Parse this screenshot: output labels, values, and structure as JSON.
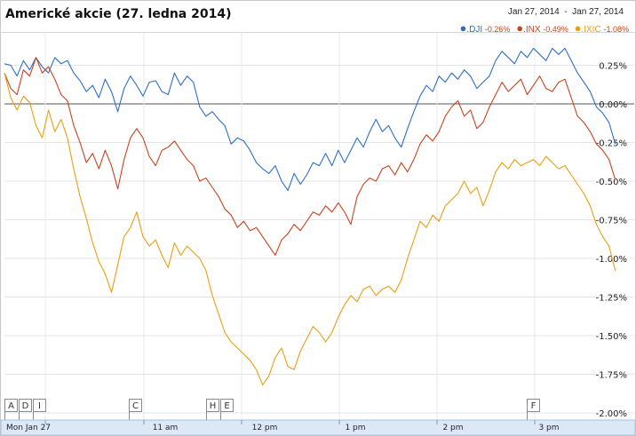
{
  "chart_data": {
    "type": "line",
    "title": "Americké akcie (27. ledna 2014)",
    "date_range": "Jan 27, 2014  -  Jan 27, 2014",
    "x_ticks": [
      "Mon Jan 27",
      "11 am",
      "12 pm",
      "1 pm",
      "2 pm",
      "3 pm"
    ],
    "y_ticks": [
      "0.25%",
      "0.00%",
      "-0.25%",
      "-0.50%",
      "-0.75%",
      "-1.00%",
      "-1.25%",
      "-1.50%",
      "-1.75%",
      "-2.00%"
    ],
    "ylim": [
      -2.0,
      0.35
    ],
    "xlim": [
      0,
      100
    ],
    "grid": true,
    "legend_position": "top-right",
    "flags": [
      "A",
      "D",
      "I",
      "C",
      "H",
      "E",
      "F"
    ],
    "series": [
      {
        "name": ".DJI",
        "change": "-0.26%",
        "color": "#2e6fc4",
        "points": [
          [
            0,
            0.26
          ],
          [
            1,
            0.25
          ],
          [
            2,
            0.18
          ],
          [
            3,
            0.28
          ],
          [
            4,
            0.22
          ],
          [
            5,
            0.3
          ],
          [
            6,
            0.24
          ],
          [
            7,
            0.2
          ],
          [
            8,
            0.3
          ],
          [
            9,
            0.26
          ],
          [
            10,
            0.28
          ],
          [
            11,
            0.2
          ],
          [
            12,
            0.15
          ],
          [
            13,
            0.08
          ],
          [
            14,
            0.12
          ],
          [
            15,
            0.04
          ],
          [
            16,
            0.16
          ],
          [
            17,
            0.08
          ],
          [
            18,
            -0.05
          ],
          [
            19,
            0.1
          ],
          [
            20,
            0.18
          ],
          [
            21,
            0.12
          ],
          [
            22,
            0.05
          ],
          [
            23,
            0.14
          ],
          [
            24,
            0.15
          ],
          [
            25,
            0.08
          ],
          [
            26,
            0.06
          ],
          [
            27,
            0.2
          ],
          [
            28,
            0.12
          ],
          [
            29,
            0.18
          ],
          [
            30,
            0.14
          ],
          [
            31,
            -0.02
          ],
          [
            32,
            -0.08
          ],
          [
            33,
            -0.05
          ],
          [
            34,
            -0.1
          ],
          [
            35,
            -0.14
          ],
          [
            36,
            -0.26
          ],
          [
            37,
            -0.22
          ],
          [
            38,
            -0.24
          ],
          [
            39,
            -0.3
          ],
          [
            40,
            -0.38
          ],
          [
            41,
            -0.42
          ],
          [
            42,
            -0.45
          ],
          [
            43,
            -0.4
          ],
          [
            44,
            -0.5
          ],
          [
            45,
            -0.56
          ],
          [
            46,
            -0.45
          ],
          [
            47,
            -0.52
          ],
          [
            48,
            -0.46
          ],
          [
            49,
            -0.38
          ],
          [
            50,
            -0.4
          ],
          [
            51,
            -0.32
          ],
          [
            52,
            -0.4
          ],
          [
            53,
            -0.3
          ],
          [
            54,
            -0.38
          ],
          [
            55,
            -0.3
          ],
          [
            56,
            -0.22
          ],
          [
            57,
            -0.28
          ],
          [
            58,
            -0.18
          ],
          [
            59,
            -0.1
          ],
          [
            60,
            -0.18
          ],
          [
            61,
            -0.14
          ],
          [
            62,
            -0.22
          ],
          [
            63,
            -0.28
          ],
          [
            64,
            -0.16
          ],
          [
            65,
            -0.05
          ],
          [
            66,
            0.05
          ],
          [
            67,
            0.12
          ],
          [
            68,
            0.08
          ],
          [
            69,
            0.18
          ],
          [
            70,
            0.14
          ],
          [
            71,
            0.2
          ],
          [
            72,
            0.16
          ],
          [
            73,
            0.22
          ],
          [
            74,
            0.18
          ],
          [
            75,
            0.1
          ],
          [
            76,
            0.14
          ],
          [
            77,
            0.18
          ],
          [
            78,
            0.28
          ],
          [
            79,
            0.34
          ],
          [
            80,
            0.3
          ],
          [
            81,
            0.26
          ],
          [
            82,
            0.34
          ],
          [
            83,
            0.3
          ],
          [
            84,
            0.36
          ],
          [
            85,
            0.32
          ],
          [
            86,
            0.28
          ],
          [
            87,
            0.36
          ],
          [
            88,
            0.32
          ],
          [
            89,
            0.36
          ],
          [
            90,
            0.28
          ],
          [
            91,
            0.2
          ],
          [
            92,
            0.14
          ],
          [
            93,
            0.08
          ],
          [
            94,
            -0.02
          ],
          [
            95,
            -0.06
          ],
          [
            96,
            -0.12
          ],
          [
            97,
            -0.26
          ]
        ]
      },
      {
        "name": ".INX",
        "change": "-0.49%",
        "color": "#c8431f",
        "points": [
          [
            0,
            0.2
          ],
          [
            1,
            0.1
          ],
          [
            2,
            0.06
          ],
          [
            3,
            0.22
          ],
          [
            4,
            0.18
          ],
          [
            5,
            0.3
          ],
          [
            6,
            0.2
          ],
          [
            7,
            0.24
          ],
          [
            8,
            0.16
          ],
          [
            9,
            0.06
          ],
          [
            10,
            0.02
          ],
          [
            11,
            -0.14
          ],
          [
            12,
            -0.25
          ],
          [
            13,
            -0.38
          ],
          [
            14,
            -0.32
          ],
          [
            15,
            -0.42
          ],
          [
            16,
            -0.3
          ],
          [
            17,
            -0.4
          ],
          [
            18,
            -0.55
          ],
          [
            19,
            -0.36
          ],
          [
            20,
            -0.22
          ],
          [
            21,
            -0.16
          ],
          [
            22,
            -0.22
          ],
          [
            23,
            -0.34
          ],
          [
            24,
            -0.4
          ],
          [
            25,
            -0.3
          ],
          [
            26,
            -0.28
          ],
          [
            27,
            -0.24
          ],
          [
            28,
            -0.3
          ],
          [
            29,
            -0.36
          ],
          [
            30,
            -0.4
          ],
          [
            31,
            -0.5
          ],
          [
            32,
            -0.48
          ],
          [
            33,
            -0.54
          ],
          [
            34,
            -0.6
          ],
          [
            35,
            -0.68
          ],
          [
            36,
            -0.72
          ],
          [
            37,
            -0.8
          ],
          [
            38,
            -0.76
          ],
          [
            39,
            -0.82
          ],
          [
            40,
            -0.8
          ],
          [
            41,
            -0.86
          ],
          [
            42,
            -0.92
          ],
          [
            43,
            -0.98
          ],
          [
            44,
            -0.88
          ],
          [
            45,
            -0.84
          ],
          [
            46,
            -0.78
          ],
          [
            47,
            -0.82
          ],
          [
            48,
            -0.76
          ],
          [
            49,
            -0.7
          ],
          [
            50,
            -0.72
          ],
          [
            51,
            -0.66
          ],
          [
            52,
            -0.7
          ],
          [
            53,
            -0.64
          ],
          [
            54,
            -0.7
          ],
          [
            55,
            -0.78
          ],
          [
            56,
            -0.6
          ],
          [
            57,
            -0.52
          ],
          [
            58,
            -0.48
          ],
          [
            59,
            -0.5
          ],
          [
            60,
            -0.42
          ],
          [
            61,
            -0.4
          ],
          [
            62,
            -0.46
          ],
          [
            63,
            -0.38
          ],
          [
            64,
            -0.44
          ],
          [
            65,
            -0.36
          ],
          [
            66,
            -0.26
          ],
          [
            67,
            -0.2
          ],
          [
            68,
            -0.24
          ],
          [
            69,
            -0.18
          ],
          [
            70,
            -0.08
          ],
          [
            71,
            -0.02
          ],
          [
            72,
            0.02
          ],
          [
            73,
            -0.08
          ],
          [
            74,
            -0.04
          ],
          [
            75,
            -0.16
          ],
          [
            76,
            -0.12
          ],
          [
            77,
            -0.02
          ],
          [
            78,
            0.06
          ],
          [
            79,
            0.14
          ],
          [
            80,
            0.08
          ],
          [
            81,
            0.12
          ],
          [
            82,
            0.16
          ],
          [
            83,
            0.06
          ],
          [
            84,
            0.12
          ],
          [
            85,
            0.18
          ],
          [
            86,
            0.1
          ],
          [
            87,
            0.08
          ],
          [
            88,
            0.14
          ],
          [
            89,
            0.16
          ],
          [
            90,
            0.04
          ],
          [
            91,
            -0.08
          ],
          [
            92,
            -0.12
          ],
          [
            93,
            -0.18
          ],
          [
            94,
            -0.26
          ],
          [
            95,
            -0.3
          ],
          [
            96,
            -0.36
          ],
          [
            97,
            -0.49
          ]
        ]
      },
      {
        "name": ".IXIC",
        "change": "-1.08%",
        "color": "#e8a010",
        "points": [
          [
            0,
            0.2
          ],
          [
            1,
            0.04
          ],
          [
            2,
            -0.04
          ],
          [
            3,
            0.05
          ],
          [
            4,
            0.01
          ],
          [
            5,
            -0.14
          ],
          [
            6,
            -0.22
          ],
          [
            7,
            -0.04
          ],
          [
            8,
            -0.18
          ],
          [
            9,
            -0.1
          ],
          [
            10,
            -0.22
          ],
          [
            11,
            -0.42
          ],
          [
            12,
            -0.6
          ],
          [
            13,
            -0.74
          ],
          [
            14,
            -0.9
          ],
          [
            15,
            -1.02
          ],
          [
            16,
            -1.1
          ],
          [
            17,
            -1.22
          ],
          [
            18,
            -1.04
          ],
          [
            19,
            -0.86
          ],
          [
            20,
            -0.8
          ],
          [
            21,
            -0.7
          ],
          [
            22,
            -0.86
          ],
          [
            23,
            -0.92
          ],
          [
            24,
            -0.88
          ],
          [
            25,
            -0.98
          ],
          [
            26,
            -1.06
          ],
          [
            27,
            -0.9
          ],
          [
            28,
            -0.98
          ],
          [
            29,
            -0.92
          ],
          [
            30,
            -0.96
          ],
          [
            31,
            -1.0
          ],
          [
            32,
            -1.08
          ],
          [
            33,
            -1.24
          ],
          [
            34,
            -1.36
          ],
          [
            35,
            -1.48
          ],
          [
            36,
            -1.54
          ],
          [
            37,
            -1.58
          ],
          [
            38,
            -1.62
          ],
          [
            39,
            -1.66
          ],
          [
            40,
            -1.72
          ],
          [
            41,
            -1.82
          ],
          [
            42,
            -1.76
          ],
          [
            43,
            -1.64
          ],
          [
            44,
            -1.58
          ],
          [
            45,
            -1.7
          ],
          [
            46,
            -1.72
          ],
          [
            47,
            -1.6
          ],
          [
            48,
            -1.52
          ],
          [
            49,
            -1.44
          ],
          [
            50,
            -1.48
          ],
          [
            51,
            -1.54
          ],
          [
            52,
            -1.48
          ],
          [
            53,
            -1.38
          ],
          [
            54,
            -1.3
          ],
          [
            55,
            -1.24
          ],
          [
            56,
            -1.28
          ],
          [
            57,
            -1.2
          ],
          [
            58,
            -1.18
          ],
          [
            59,
            -1.24
          ],
          [
            60,
            -1.2
          ],
          [
            61,
            -1.18
          ],
          [
            62,
            -1.22
          ],
          [
            63,
            -1.14
          ],
          [
            64,
            -1.0
          ],
          [
            65,
            -0.88
          ],
          [
            66,
            -0.76
          ],
          [
            67,
            -0.8
          ],
          [
            68,
            -0.72
          ],
          [
            69,
            -0.76
          ],
          [
            70,
            -0.66
          ],
          [
            71,
            -0.62
          ],
          [
            72,
            -0.58
          ],
          [
            73,
            -0.5
          ],
          [
            74,
            -0.58
          ],
          [
            75,
            -0.54
          ],
          [
            76,
            -0.66
          ],
          [
            77,
            -0.56
          ],
          [
            78,
            -0.44
          ],
          [
            79,
            -0.38
          ],
          [
            80,
            -0.42
          ],
          [
            81,
            -0.36
          ],
          [
            82,
            -0.4
          ],
          [
            83,
            -0.38
          ],
          [
            84,
            -0.36
          ],
          [
            85,
            -0.4
          ],
          [
            86,
            -0.34
          ],
          [
            87,
            -0.38
          ],
          [
            88,
            -0.42
          ],
          [
            89,
            -0.4
          ],
          [
            90,
            -0.46
          ],
          [
            91,
            -0.52
          ],
          [
            92,
            -0.58
          ],
          [
            93,
            -0.66
          ],
          [
            94,
            -0.78
          ],
          [
            95,
            -0.86
          ],
          [
            96,
            -0.92
          ],
          [
            97,
            -1.08
          ]
        ]
      }
    ]
  }
}
